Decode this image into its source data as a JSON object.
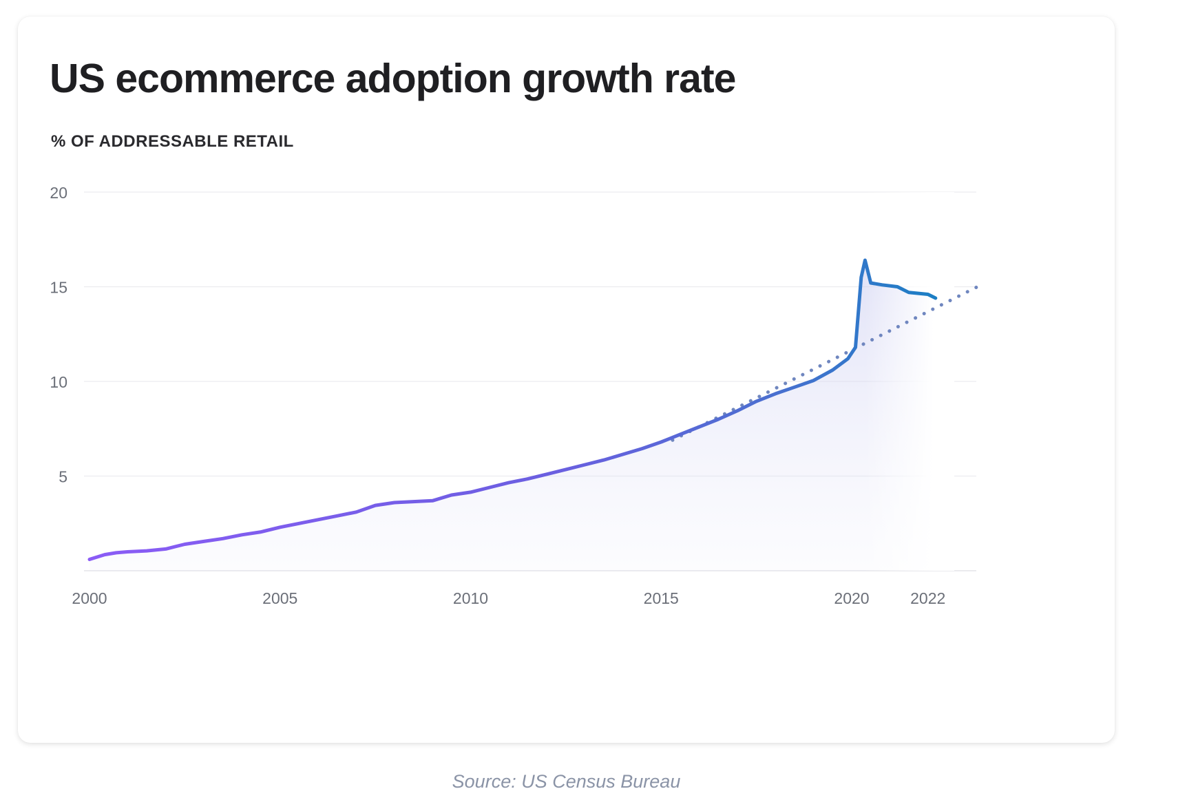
{
  "chart_data": {
    "type": "line",
    "title": "US ecommerce adoption growth rate",
    "subtitle": "% OF ADDRESSABLE RETAIL",
    "xlabel": "",
    "ylabel": "",
    "xlim": [
      2000,
      2023
    ],
    "ylim": [
      0,
      20
    ],
    "x_ticks": [
      2000,
      2005,
      2010,
      2015,
      2020,
      2022
    ],
    "y_ticks": [
      5,
      10,
      15,
      20
    ],
    "grid": true,
    "legend": "none",
    "series": [
      {
        "color": "#8b5cf6",
        "end_color": "#1a7fc4",
        "style": "solid",
        "points": [
          [
            2000,
            0.6
          ],
          [
            2000.4,
            0.85
          ],
          [
            2000.7,
            0.95
          ],
          [
            2001,
            1.0
          ],
          [
            2001.5,
            1.05
          ],
          [
            2002,
            1.15
          ],
          [
            2002.5,
            1.4
          ],
          [
            2003,
            1.55
          ],
          [
            2003.5,
            1.7
          ],
          [
            2004,
            1.9
          ],
          [
            2004.5,
            2.05
          ],
          [
            2005,
            2.3
          ],
          [
            2005.5,
            2.5
          ],
          [
            2006,
            2.7
          ],
          [
            2006.5,
            2.9
          ],
          [
            2007,
            3.1
          ],
          [
            2007.5,
            3.45
          ],
          [
            2008,
            3.6
          ],
          [
            2008.5,
            3.65
          ],
          [
            2009,
            3.7
          ],
          [
            2009.5,
            4.0
          ],
          [
            2010,
            4.15
          ],
          [
            2010.5,
            4.4
          ],
          [
            2011,
            4.65
          ],
          [
            2011.5,
            4.85
          ],
          [
            2012,
            5.1
          ],
          [
            2012.5,
            5.35
          ],
          [
            2013,
            5.6
          ],
          [
            2013.5,
            5.85
          ],
          [
            2014,
            6.15
          ],
          [
            2014.5,
            6.45
          ],
          [
            2015,
            6.8
          ],
          [
            2015.5,
            7.2
          ],
          [
            2016,
            7.6
          ],
          [
            2016.5,
            8.0
          ],
          [
            2017,
            8.45
          ],
          [
            2017.5,
            8.95
          ],
          [
            2018,
            9.35
          ],
          [
            2018.5,
            9.7
          ],
          [
            2019,
            10.05
          ],
          [
            2019.5,
            10.6
          ],
          [
            2019.9,
            11.2
          ],
          [
            2020.1,
            11.8
          ],
          [
            2020.25,
            15.5
          ],
          [
            2020.35,
            16.4
          ],
          [
            2020.5,
            15.2
          ],
          [
            2020.8,
            15.1
          ],
          [
            2021.2,
            15.0
          ],
          [
            2021.5,
            14.7
          ],
          [
            2022,
            14.6
          ],
          [
            2022.2,
            14.4
          ]
        ]
      },
      {
        "color": "#6f86bf",
        "style": "dotted",
        "points": [
          [
            2015.3,
            6.9
          ],
          [
            2023.3,
            15.0
          ]
        ]
      }
    ]
  },
  "source": "Source: US Census Bureau"
}
